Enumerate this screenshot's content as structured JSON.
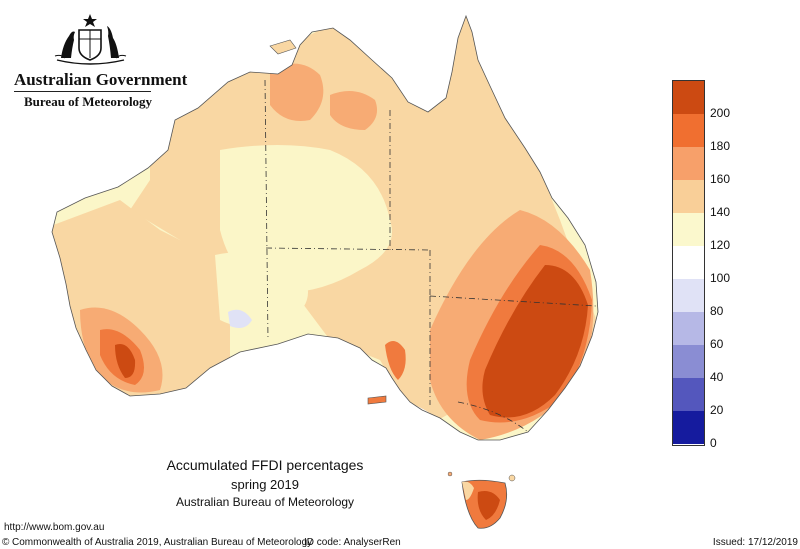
{
  "header": {
    "government": "Australian Government",
    "bureau": "Bureau of Meteorology"
  },
  "map": {
    "title": "Accumulated FFDI percentages",
    "period": "spring 2019",
    "source": "Australian Bureau of Meteorology",
    "region": "Australia",
    "variable": "Accumulated FFDI percentage"
  },
  "legend": {
    "labels": [
      "200",
      "180",
      "160",
      "140",
      "120",
      "100",
      "80",
      "60",
      "40",
      "20",
      "0"
    ],
    "colors": [
      "#cc4a12",
      "#f06f30",
      "#f7a06a",
      "#f9cf98",
      "#fbf8cd",
      "#ffffff",
      "#e0e2f6",
      "#b6b8e6",
      "#8a8dd3",
      "#5457bd",
      "#151b9e"
    ]
  },
  "footer": {
    "url": "http://www.bom.gov.au",
    "copyright": "Commonwealth of Australia 2019, Australian Bureau of Meteorology",
    "id_code": "ID code: AnalyserRen",
    "issued": "Issued: 17/12/2019"
  }
}
